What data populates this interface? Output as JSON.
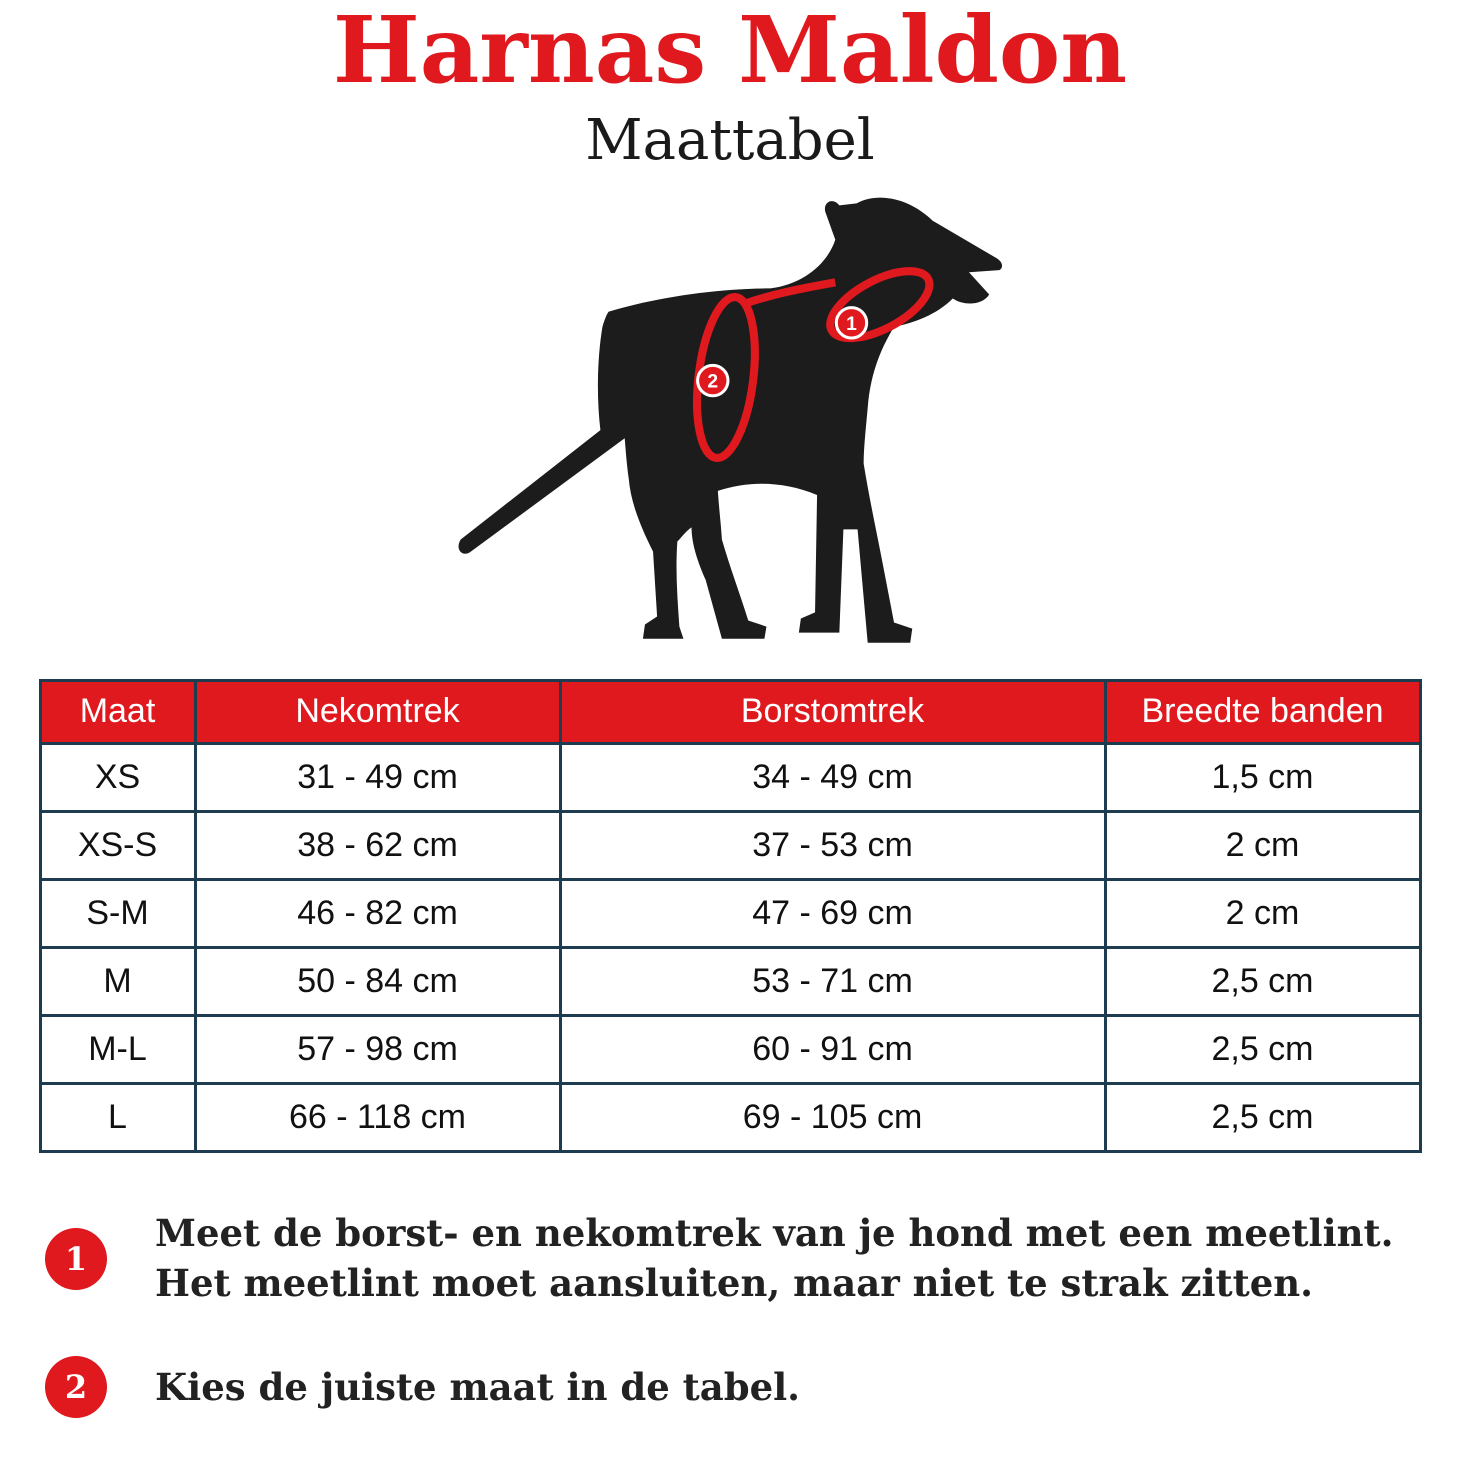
{
  "page": {
    "title": "Harnas Maldon",
    "subtitle": "Maattabel"
  },
  "harness": {
    "marker1_label": "1",
    "marker2_label": "2"
  },
  "table": {
    "headers": [
      "Maat",
      "Nekomtrek",
      "Borstomtrek",
      "Breedte banden"
    ],
    "rows": [
      [
        "XS",
        "31 - 49 cm",
        "34 - 49 cm",
        "1,5 cm"
      ],
      [
        "XS-S",
        "38 - 62 cm",
        "37 - 53 cm",
        "2 cm"
      ],
      [
        "S-M",
        "46 - 82 cm",
        "47 - 69 cm",
        "2 cm"
      ],
      [
        "M",
        "50 - 84 cm",
        "53 - 71 cm",
        "2,5 cm"
      ],
      [
        "M-L",
        "57 - 98 cm",
        "60 - 91 cm",
        "2,5 cm"
      ],
      [
        "L",
        "66 - 118 cm",
        "69 - 105 cm",
        "2,5 cm"
      ]
    ]
  },
  "notes": [
    {
      "number": "1",
      "text": "Meet de borst- en nekomtrek van je hond met een meetlint. Het meetlint moet aansluiten, maar niet te strak zitten."
    },
    {
      "number": "2",
      "text": "Kies de juiste maat in de tabel."
    }
  ],
  "colors": {
    "accent_red": "#e0191f",
    "table_border": "#1d3c50",
    "silhouette": "#1c1c1c"
  }
}
